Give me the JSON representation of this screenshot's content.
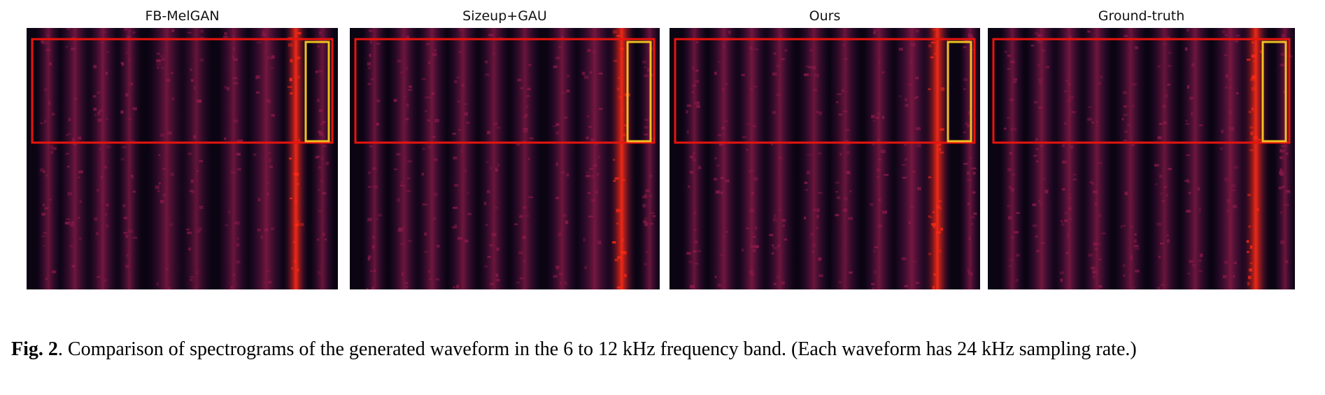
{
  "figure": {
    "panels": [
      {
        "title": "FB-MelGAN"
      },
      {
        "title": "Sizeup+GAU"
      },
      {
        "title": "Ours"
      },
      {
        "title": "Ground-truth"
      }
    ],
    "caption": {
      "label": "Fig. 2",
      "text": ". Comparison of spectrograms of the generated waveform in the 6 to 12 kHz frequency band. (Each waveform has 24 kHz sampling rate.)"
    },
    "colors": {
      "background": "#0b0412",
      "low": "#3a0f4a",
      "mid": "#8a1a48",
      "high": "#ff2a14",
      "region_box": "#e8140c",
      "detail_box": "#f0c020"
    }
  }
}
